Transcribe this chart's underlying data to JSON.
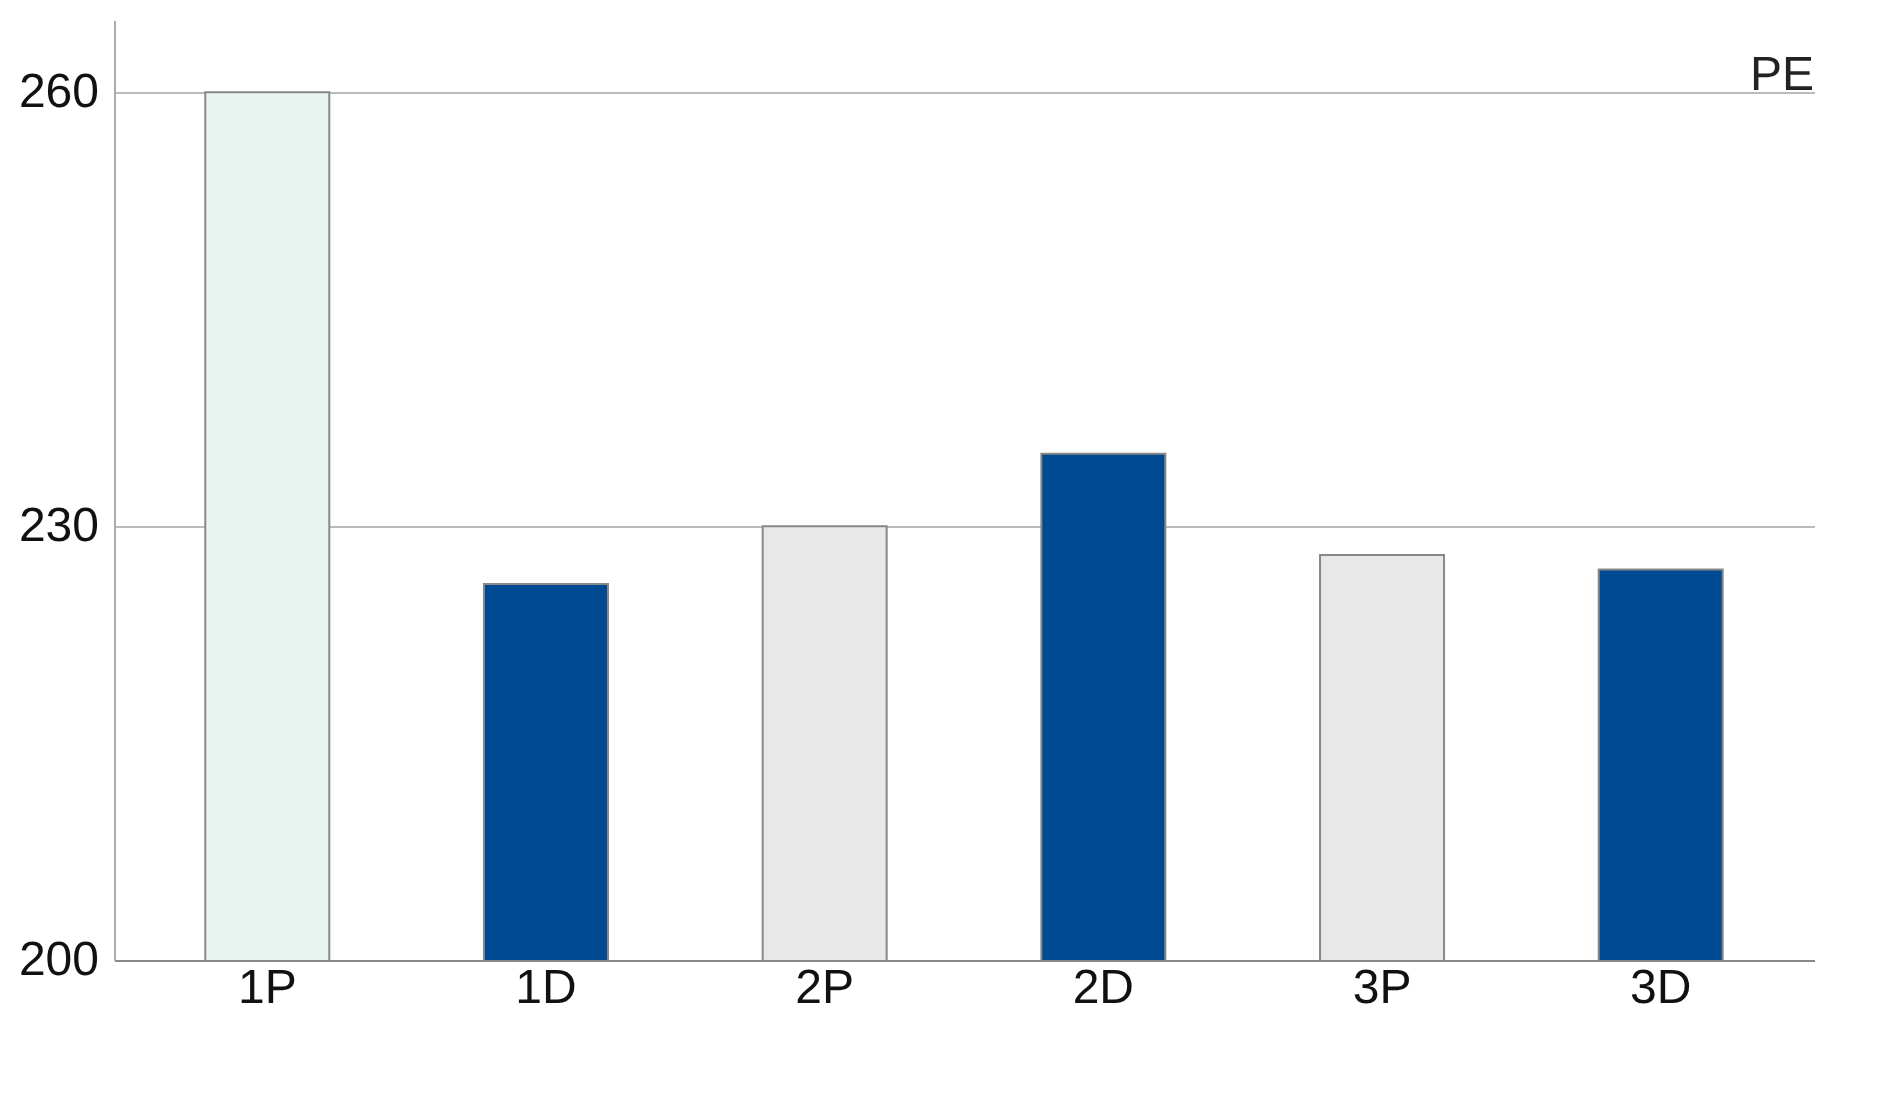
{
  "chart_data": {
    "type": "bar",
    "title": "PE",
    "categories": [
      "1P",
      "1D",
      "2P",
      "2D",
      "3P",
      "3D"
    ],
    "values": [
      260,
      226,
      230,
      235,
      228,
      227
    ],
    "colors": [
      "#e8f4f0",
      "#004a93",
      "#e8e8e8",
      "#004a93",
      "#e8e8e8",
      "#004a93"
    ],
    "ylim": [
      200,
      265
    ],
    "yticks": [
      200,
      230,
      260
    ],
    "grid": "y"
  }
}
